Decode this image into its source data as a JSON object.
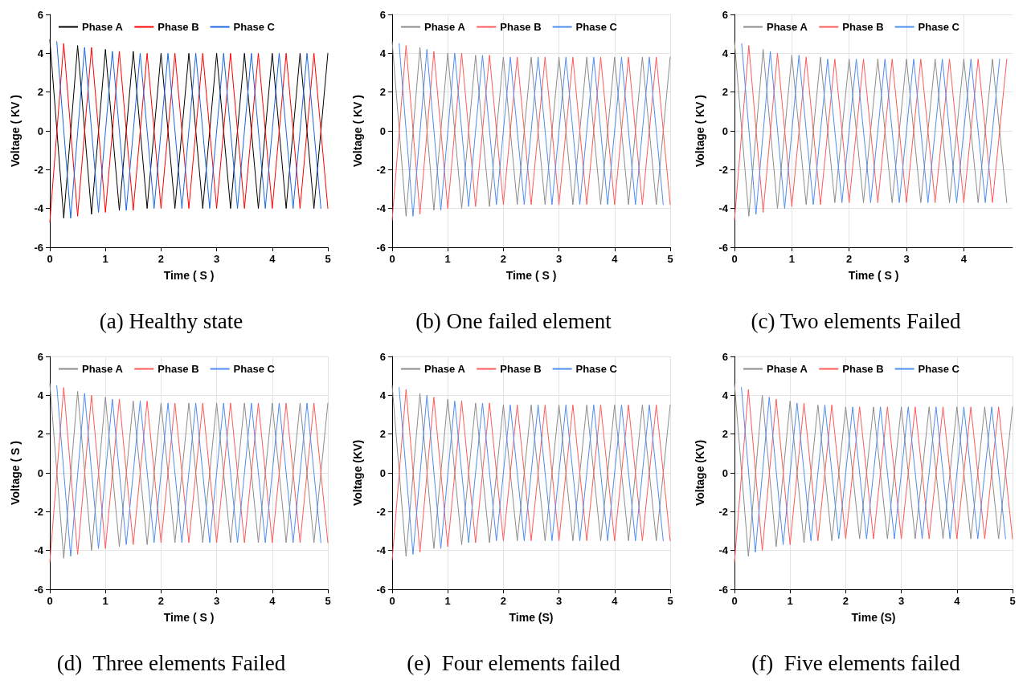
{
  "chart_data": [
    {
      "type": "line",
      "title": "(a) Healthy state",
      "xlabel": "Time ( S )",
      "ylabel": "Voltage ( KV )",
      "xlim": [
        0,
        5
      ],
      "xticks": [
        0,
        1,
        2,
        3,
        4,
        5
      ],
      "ylim": [
        -6,
        6
      ],
      "yticks": [
        -6,
        -4,
        -2,
        0,
        2,
        4,
        6
      ],
      "grid": false,
      "legend": "top",
      "marker": "none",
      "x": [
        0,
        0.25,
        0.5,
        0.75,
        1,
        1.25,
        1.5,
        1.75,
        2,
        2.25,
        2.5,
        2.75,
        3,
        3.25,
        3.5,
        3.75,
        4,
        4.25,
        4.5,
        4.75,
        5
      ],
      "series": [
        {
          "name": "Phase A",
          "color": "#000000",
          "values": [
            4.7,
            -4.5,
            4.4,
            -4.3,
            4.2,
            -4.1,
            4.1,
            -4.0,
            4.0,
            -4.0,
            4.0,
            -4.0,
            4.0,
            -4.0,
            4.0,
            -4.0,
            4.0,
            -4.0,
            4.0,
            -4.0,
            4.0
          ]
        },
        {
          "name": "Phase B",
          "color": "#ff0000",
          "values": [
            -4.7,
            4.5,
            -4.4,
            4.3,
            -4.2,
            4.1,
            -4.1,
            4.0,
            -4.0,
            4.0,
            -4.0,
            4.0,
            -4.0,
            4.0,
            -4.0,
            4.0,
            -4.0,
            4.0,
            -4.0,
            4.0,
            -4.0
          ]
        },
        {
          "name": "Phase C",
          "color": "#1a66e0",
          "x": [
            0.125,
            0.375,
            0.625,
            0.875,
            1.125,
            1.375,
            1.625,
            1.875,
            2.125,
            2.375,
            2.625,
            2.875,
            3.125,
            3.375,
            3.625,
            3.875,
            4.125,
            4.375,
            4.625,
            4.875
          ],
          "values": [
            4.6,
            -4.5,
            4.3,
            -4.2,
            4.1,
            -4.1,
            4.0,
            -4.0,
            4.0,
            -4.0,
            4.0,
            -4.0,
            4.0,
            -4.0,
            4.0,
            -4.0,
            4.0,
            -4.0,
            4.0,
            -4.0
          ]
        }
      ]
    },
    {
      "type": "line",
      "title": "(b) One failed element",
      "xlabel": "Time ( S )",
      "ylabel": "Voltage ( KV )",
      "xlim": [
        0,
        5
      ],
      "xticks": [
        0,
        1,
        2,
        3,
        4,
        5
      ],
      "ylim": [
        -6,
        6
      ],
      "yticks": [
        -6,
        -4,
        -2,
        0,
        2,
        4,
        6
      ],
      "grid": true,
      "legend": "top",
      "marker": "none",
      "x": [
        0,
        0.25,
        0.5,
        0.75,
        1,
        1.25,
        1.5,
        1.75,
        2,
        2.25,
        2.5,
        2.75,
        3,
        3.25,
        3.5,
        3.75,
        4,
        4.25,
        4.5,
        4.75,
        5
      ],
      "series": [
        {
          "name": "Phase A",
          "color": "#8c8c8c",
          "values": [
            4.6,
            -4.4,
            4.3,
            -4.1,
            4.0,
            -4.0,
            3.9,
            -3.9,
            3.8,
            -3.8,
            3.8,
            -3.8,
            3.8,
            -3.8,
            3.8,
            -3.8,
            3.8,
            -3.8,
            3.8,
            -3.8,
            3.8
          ]
        },
        {
          "name": "Phase B",
          "color": "#ff5a5a",
          "values": [
            -4.6,
            4.4,
            -4.3,
            4.1,
            -4.0,
            4.0,
            -3.9,
            3.9,
            -3.8,
            3.8,
            -3.8,
            3.8,
            -3.8,
            3.8,
            -3.8,
            3.8,
            -3.8,
            3.8,
            -3.8,
            3.8,
            -3.8
          ]
        },
        {
          "name": "Phase C",
          "color": "#4f8df0",
          "x": [
            0.125,
            0.375,
            0.625,
            0.875,
            1.125,
            1.375,
            1.625,
            1.875,
            2.125,
            2.375,
            2.625,
            2.875,
            3.125,
            3.375,
            3.625,
            3.875,
            4.125,
            4.375,
            4.625,
            4.875
          ],
          "values": [
            4.5,
            -4.4,
            4.2,
            -4.1,
            4.0,
            -3.9,
            3.9,
            -3.8,
            3.8,
            -3.8,
            3.8,
            -3.8,
            3.8,
            -3.8,
            3.8,
            -3.8,
            3.8,
            -3.8,
            3.8,
            -3.8
          ]
        }
      ]
    },
    {
      "type": "line",
      "title": "(c) Two elements Failed",
      "xlabel": "Time ( S )",
      "ylabel": "Voltage ( KV )",
      "xlim": [
        0,
        4.85
      ],
      "xticks": [
        0,
        1,
        2,
        3,
        4
      ],
      "ylim": [
        -6,
        6
      ],
      "yticks": [
        -6,
        -4,
        -2,
        0,
        2,
        4,
        6
      ],
      "grid": true,
      "legend": "top",
      "marker": "none",
      "x": [
        0,
        0.25,
        0.5,
        0.75,
        1,
        1.25,
        1.5,
        1.75,
        2,
        2.25,
        2.5,
        2.75,
        3,
        3.25,
        3.5,
        3.75,
        4,
        4.25,
        4.5,
        4.75
      ],
      "series": [
        {
          "name": "Phase A",
          "color": "#8c8c8c",
          "values": [
            4.6,
            -4.4,
            4.2,
            -4.0,
            3.9,
            -3.8,
            3.8,
            -3.7,
            3.7,
            -3.7,
            3.7,
            -3.7,
            3.7,
            -3.7,
            3.7,
            -3.7,
            3.7,
            -3.7,
            3.7,
            -3.7
          ]
        },
        {
          "name": "Phase B",
          "color": "#ff5a5a",
          "values": [
            -4.6,
            4.4,
            -4.2,
            4.0,
            -3.9,
            3.8,
            -3.8,
            3.7,
            -3.7,
            3.7,
            -3.7,
            3.7,
            -3.7,
            3.7,
            -3.7,
            3.7,
            -3.7,
            3.7,
            -3.7,
            3.7
          ]
        },
        {
          "name": "Phase C",
          "color": "#4f8df0",
          "x": [
            0.125,
            0.375,
            0.625,
            0.875,
            1.125,
            1.375,
            1.625,
            1.875,
            2.125,
            2.375,
            2.625,
            2.875,
            3.125,
            3.375,
            3.625,
            3.875,
            4.125,
            4.375,
            4.625
          ],
          "values": [
            4.5,
            -4.3,
            4.1,
            -4.0,
            3.9,
            -3.8,
            3.7,
            -3.7,
            3.7,
            -3.7,
            3.7,
            -3.7,
            3.7,
            -3.7,
            3.7,
            -3.7,
            3.7,
            -3.7,
            3.7
          ]
        }
      ]
    },
    {
      "type": "line",
      "title": "(d)  Three elements Failed",
      "xlabel": "Time ( S )",
      "ylabel": "Voltage ( S )",
      "xlim": [
        0,
        5
      ],
      "xticks": [
        0,
        1,
        2,
        3,
        4,
        5
      ],
      "ylim": [
        -6,
        6
      ],
      "yticks": [
        -6,
        -4,
        -2,
        0,
        2,
        4,
        6
      ],
      "grid": true,
      "legend": "top",
      "marker": "none",
      "x": [
        0,
        0.25,
        0.5,
        0.75,
        1,
        1.25,
        1.5,
        1.75,
        2,
        2.25,
        2.5,
        2.75,
        3,
        3.25,
        3.5,
        3.75,
        4,
        4.25,
        4.5,
        4.75,
        5
      ],
      "series": [
        {
          "name": "Phase A",
          "color": "#8c8c8c",
          "values": [
            4.6,
            -4.4,
            4.2,
            -4.0,
            3.9,
            -3.8,
            3.7,
            -3.7,
            3.6,
            -3.6,
            3.6,
            -3.6,
            3.6,
            -3.6,
            3.6,
            -3.6,
            3.6,
            -3.6,
            3.6,
            -3.6,
            3.6
          ]
        },
        {
          "name": "Phase B",
          "color": "#ff5a5a",
          "values": [
            -4.6,
            4.4,
            -4.2,
            4.0,
            -3.9,
            3.8,
            -3.7,
            3.7,
            -3.6,
            3.6,
            -3.6,
            3.6,
            -3.6,
            3.6,
            -3.6,
            3.6,
            -3.6,
            3.6,
            -3.6,
            3.6,
            -3.6
          ]
        },
        {
          "name": "Phase C",
          "color": "#4f8df0",
          "x": [
            0.125,
            0.375,
            0.625,
            0.875,
            1.125,
            1.375,
            1.625,
            1.875,
            2.125,
            2.375,
            2.625,
            2.875,
            3.125,
            3.375,
            3.625,
            3.875,
            4.125,
            4.375,
            4.625,
            4.875
          ],
          "values": [
            4.5,
            -4.3,
            4.1,
            -3.9,
            3.8,
            -3.7,
            3.7,
            -3.6,
            3.6,
            -3.6,
            3.6,
            -3.6,
            3.6,
            -3.6,
            3.6,
            -3.6,
            3.6,
            -3.6,
            3.6,
            -3.6
          ]
        }
      ]
    },
    {
      "type": "line",
      "title": "(e)  Four elements failed",
      "xlabel": "Time (S)",
      "ylabel": "Voltage (KV)",
      "xlim": [
        0,
        5
      ],
      "xticks": [
        0,
        1,
        2,
        3,
        4,
        5
      ],
      "ylim": [
        -6,
        6
      ],
      "yticks": [
        -6,
        -4,
        -2,
        0,
        2,
        4,
        6
      ],
      "grid": true,
      "legend": "top",
      "marker": "none",
      "x": [
        0,
        0.25,
        0.5,
        0.75,
        1,
        1.25,
        1.5,
        1.75,
        2,
        2.25,
        2.5,
        2.75,
        3,
        3.25,
        3.5,
        3.75,
        4,
        4.25,
        4.5,
        4.75,
        5
      ],
      "series": [
        {
          "name": "Phase A",
          "color": "#8c8c8c",
          "values": [
            4.5,
            -4.3,
            4.1,
            -3.9,
            3.8,
            -3.7,
            3.6,
            -3.6,
            3.5,
            -3.5,
            3.5,
            -3.5,
            3.5,
            -3.5,
            3.5,
            -3.5,
            3.5,
            -3.5,
            3.5,
            -3.5,
            3.5
          ]
        },
        {
          "name": "Phase B",
          "color": "#ff5a5a",
          "values": [
            -4.5,
            4.3,
            -4.1,
            3.9,
            -3.8,
            3.7,
            -3.6,
            3.6,
            -3.5,
            3.5,
            -3.5,
            3.5,
            -3.5,
            3.5,
            -3.5,
            3.5,
            -3.5,
            3.5,
            -3.5,
            3.5,
            -3.5
          ]
        },
        {
          "name": "Phase C",
          "color": "#4f8df0",
          "x": [
            0.125,
            0.375,
            0.625,
            0.875,
            1.125,
            1.375,
            1.625,
            1.875,
            2.125,
            2.375,
            2.625,
            2.875,
            3.125,
            3.375,
            3.625,
            3.875,
            4.125,
            4.375,
            4.625,
            4.875
          ],
          "values": [
            4.4,
            -4.2,
            4.0,
            -3.9,
            3.7,
            -3.6,
            3.6,
            -3.5,
            3.5,
            -3.5,
            3.5,
            -3.5,
            3.5,
            -3.5,
            3.5,
            -3.5,
            3.5,
            -3.5,
            3.5,
            -3.5
          ]
        }
      ]
    },
    {
      "type": "line",
      "title": "(f)  Five elements failed",
      "xlabel": "Time (S)",
      "ylabel": "Voltage (KV)",
      "xlim": [
        0,
        5
      ],
      "xticks": [
        0,
        1,
        2,
        3,
        4,
        5
      ],
      "ylim": [
        -6,
        6
      ],
      "yticks": [
        -6,
        -4,
        -2,
        0,
        2,
        4,
        6
      ],
      "grid": true,
      "legend": "top",
      "marker": "none",
      "x": [
        0,
        0.25,
        0.5,
        0.75,
        1,
        1.25,
        1.5,
        1.75,
        2,
        2.25,
        2.5,
        2.75,
        3,
        3.25,
        3.5,
        3.75,
        4,
        4.25,
        4.5,
        4.75,
        5
      ],
      "series": [
        {
          "name": "Phase A",
          "color": "#8c8c8c",
          "values": [
            4.6,
            -4.3,
            4.0,
            -3.8,
            3.7,
            -3.6,
            3.5,
            -3.5,
            3.4,
            -3.4,
            3.4,
            -3.4,
            3.4,
            -3.4,
            3.4,
            -3.4,
            3.4,
            -3.4,
            3.4,
            -3.4,
            3.4
          ]
        },
        {
          "name": "Phase B",
          "color": "#ff5a5a",
          "values": [
            -4.6,
            4.3,
            -4.0,
            3.8,
            -3.7,
            3.6,
            -3.5,
            3.5,
            -3.4,
            3.4,
            -3.4,
            3.4,
            -3.4,
            3.4,
            -3.4,
            3.4,
            -3.4,
            3.4,
            -3.4,
            3.4,
            -3.4
          ]
        },
        {
          "name": "Phase C",
          "color": "#4f8df0",
          "x": [
            0.125,
            0.375,
            0.625,
            0.875,
            1.125,
            1.375,
            1.625,
            1.875,
            2.125,
            2.375,
            2.625,
            2.875,
            3.125,
            3.375,
            3.625,
            3.875,
            4.125,
            4.375,
            4.625,
            4.875
          ],
          "values": [
            4.4,
            -4.1,
            3.9,
            -3.7,
            3.6,
            -3.5,
            3.5,
            -3.4,
            3.4,
            -3.4,
            3.4,
            -3.4,
            3.4,
            -3.4,
            3.4,
            -3.4,
            3.4,
            -3.4,
            3.4,
            -3.4
          ]
        }
      ]
    }
  ]
}
